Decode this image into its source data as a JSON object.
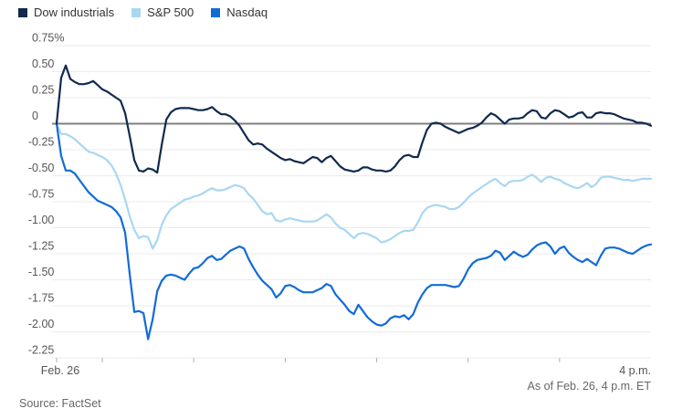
{
  "legend": {
    "items": [
      {
        "label": "Dow industrials",
        "color": "#102a4c"
      },
      {
        "label": "S&P 500",
        "color": "#a9d7f2"
      },
      {
        "label": "Nasdaq",
        "color": "#116bd8"
      }
    ]
  },
  "footer": {
    "as_of": "As of Feb. 26, 4 p.m. ET",
    "source": "Source: FactSet"
  },
  "colors": {
    "background": "#ffffff",
    "grid": "#ebebeb",
    "zero_line": "#7f7f7f",
    "tick": "#b0b0b0",
    "axis_text": "#555555",
    "footnote_text": "#666666"
  },
  "chart_data": {
    "type": "line",
    "unit": "%",
    "grid": true,
    "legend_position": "top-left",
    "ylim": [
      -2.25,
      0.75
    ],
    "y_axis": {
      "step": 0.25,
      "tick_labels": [
        "0.75%",
        "0.50",
        "0.25",
        "0",
        "-0.25",
        "-0.50",
        "-0.75",
        "-1.00",
        "-1.25",
        "-1.50",
        "-1.75",
        "-2.00",
        "-2.25"
      ]
    },
    "x_axis": {
      "session_minutes": 390,
      "tick_minutes": [
        0,
        30,
        90,
        150,
        210,
        270,
        330
      ],
      "left_label": "Feb. 26",
      "right_label": "4 p.m."
    },
    "sample_step_minutes": 3,
    "series": [
      {
        "name": "Dow industrials",
        "color": "#102a4c",
        "values": [
          0.0,
          0.44,
          0.56,
          0.43,
          0.4,
          0.38,
          0.38,
          0.39,
          0.41,
          0.37,
          0.33,
          0.31,
          0.28,
          0.25,
          0.22,
          0.1,
          -0.12,
          -0.35,
          -0.45,
          -0.46,
          -0.43,
          -0.44,
          -0.47,
          -0.2,
          0.04,
          0.11,
          0.14,
          0.15,
          0.15,
          0.15,
          0.14,
          0.13,
          0.13,
          0.14,
          0.16,
          0.12,
          0.09,
          0.09,
          0.07,
          0.03,
          -0.02,
          -0.09,
          -0.16,
          -0.2,
          -0.19,
          -0.2,
          -0.24,
          -0.27,
          -0.3,
          -0.33,
          -0.35,
          -0.34,
          -0.36,
          -0.37,
          -0.38,
          -0.35,
          -0.32,
          -0.33,
          -0.37,
          -0.33,
          -0.31,
          -0.36,
          -0.41,
          -0.44,
          -0.45,
          -0.46,
          -0.45,
          -0.42,
          -0.42,
          -0.44,
          -0.45,
          -0.45,
          -0.46,
          -0.45,
          -0.41,
          -0.35,
          -0.31,
          -0.3,
          -0.32,
          -0.32,
          -0.18,
          -0.06,
          0.0,
          0.01,
          0.0,
          -0.03,
          -0.05,
          -0.07,
          -0.09,
          -0.07,
          -0.05,
          -0.04,
          -0.02,
          0.01,
          0.06,
          0.1,
          0.08,
          0.04,
          0.0,
          0.04,
          0.05,
          0.05,
          0.06,
          0.1,
          0.13,
          0.12,
          0.06,
          0.05,
          0.1,
          0.13,
          0.12,
          0.09,
          0.06,
          0.07,
          0.1,
          0.11,
          0.06,
          0.06,
          0.1,
          0.11,
          0.1,
          0.1,
          0.09,
          0.07,
          0.05,
          0.04,
          0.03,
          0.01,
          0.01,
          0.0,
          -0.02
        ]
      },
      {
        "name": "S&P 500",
        "color": "#a9d7f2",
        "values": [
          0.0,
          -0.1,
          -0.1,
          -0.12,
          -0.15,
          -0.19,
          -0.23,
          -0.27,
          -0.28,
          -0.3,
          -0.32,
          -0.35,
          -0.4,
          -0.48,
          -0.59,
          -0.73,
          -0.89,
          -1.02,
          -1.1,
          -1.08,
          -1.09,
          -1.2,
          -1.12,
          -0.97,
          -0.88,
          -0.82,
          -0.79,
          -0.76,
          -0.73,
          -0.72,
          -0.7,
          -0.69,
          -0.67,
          -0.64,
          -0.62,
          -0.64,
          -0.64,
          -0.63,
          -0.61,
          -0.59,
          -0.6,
          -0.62,
          -0.68,
          -0.72,
          -0.78,
          -0.84,
          -0.87,
          -0.86,
          -0.93,
          -0.94,
          -0.92,
          -0.91,
          -0.92,
          -0.93,
          -0.94,
          -0.94,
          -0.94,
          -0.93,
          -0.9,
          -0.87,
          -0.9,
          -0.96,
          -1.0,
          -1.02,
          -1.06,
          -1.1,
          -1.06,
          -1.05,
          -1.06,
          -1.08,
          -1.1,
          -1.14,
          -1.13,
          -1.11,
          -1.08,
          -1.05,
          -1.03,
          -1.03,
          -1.02,
          -0.95,
          -0.86,
          -0.81,
          -0.79,
          -0.78,
          -0.79,
          -0.8,
          -0.82,
          -0.82,
          -0.8,
          -0.76,
          -0.71,
          -0.67,
          -0.64,
          -0.61,
          -0.58,
          -0.55,
          -0.53,
          -0.57,
          -0.6,
          -0.56,
          -0.55,
          -0.55,
          -0.54,
          -0.51,
          -0.49,
          -0.52,
          -0.56,
          -0.52,
          -0.51,
          -0.53,
          -0.54,
          -0.57,
          -0.59,
          -0.61,
          -0.62,
          -0.6,
          -0.57,
          -0.61,
          -0.58,
          -0.52,
          -0.51,
          -0.51,
          -0.52,
          -0.53,
          -0.54,
          -0.54,
          -0.55,
          -0.54,
          -0.53,
          -0.53,
          -0.53
        ]
      },
      {
        "name": "Nasdaq",
        "color": "#116bd8",
        "values": [
          0.0,
          -0.31,
          -0.45,
          -0.45,
          -0.48,
          -0.54,
          -0.6,
          -0.66,
          -0.7,
          -0.74,
          -0.76,
          -0.78,
          -0.8,
          -0.84,
          -0.9,
          -1.05,
          -1.45,
          -1.81,
          -1.8,
          -1.82,
          -2.07,
          -1.88,
          -1.61,
          -1.51,
          -1.46,
          -1.45,
          -1.46,
          -1.48,
          -1.5,
          -1.44,
          -1.39,
          -1.38,
          -1.34,
          -1.29,
          -1.27,
          -1.31,
          -1.3,
          -1.26,
          -1.22,
          -1.2,
          -1.18,
          -1.2,
          -1.3,
          -1.38,
          -1.45,
          -1.51,
          -1.55,
          -1.59,
          -1.67,
          -1.63,
          -1.56,
          -1.55,
          -1.57,
          -1.6,
          -1.62,
          -1.62,
          -1.62,
          -1.6,
          -1.58,
          -1.54,
          -1.56,
          -1.64,
          -1.69,
          -1.74,
          -1.8,
          -1.83,
          -1.74,
          -1.8,
          -1.86,
          -1.9,
          -1.93,
          -1.94,
          -1.92,
          -1.87,
          -1.85,
          -1.86,
          -1.84,
          -1.88,
          -1.83,
          -1.72,
          -1.64,
          -1.58,
          -1.55,
          -1.55,
          -1.55,
          -1.55,
          -1.56,
          -1.57,
          -1.56,
          -1.49,
          -1.4,
          -1.34,
          -1.31,
          -1.3,
          -1.29,
          -1.27,
          -1.22,
          -1.24,
          -1.31,
          -1.27,
          -1.23,
          -1.26,
          -1.28,
          -1.26,
          -1.21,
          -1.17,
          -1.15,
          -1.14,
          -1.18,
          -1.25,
          -1.2,
          -1.18,
          -1.24,
          -1.28,
          -1.31,
          -1.33,
          -1.3,
          -1.33,
          -1.36,
          -1.27,
          -1.2,
          -1.19,
          -1.19,
          -1.2,
          -1.22,
          -1.24,
          -1.25,
          -1.22,
          -1.19,
          -1.17,
          -1.16
        ]
      }
    ]
  }
}
